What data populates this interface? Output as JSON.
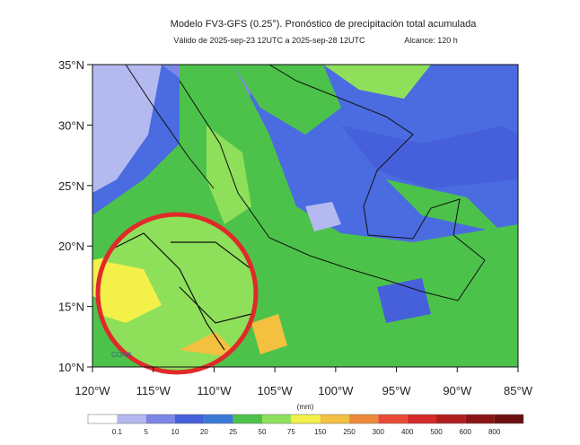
{
  "header": {
    "title": "Modelo FV3-GFS (0.25°). Pronóstico de precipitación total acumulada",
    "subtitle": "Válido de 2025-sep-23 12UTC a 2025-sep-28 12UTC",
    "range": "Alcance: 120 h"
  },
  "map": {
    "lat_ticks": [
      {
        "value": 35,
        "label": "35°N"
      },
      {
        "value": 30,
        "label": "30°N"
      },
      {
        "value": 25,
        "label": "25°N"
      },
      {
        "value": 20,
        "label": "20°N"
      },
      {
        "value": 15,
        "label": "15°N"
      },
      {
        "value": 10,
        "label": "10°N"
      }
    ],
    "lon_ticks": [
      {
        "value": -120,
        "label": "120°W"
      },
      {
        "value": -115,
        "label": "115°W"
      },
      {
        "value": -110,
        "label": "110°W"
      },
      {
        "value": -105,
        "label": "105°W"
      },
      {
        "value": -100,
        "label": "100°W"
      },
      {
        "value": -95,
        "label": "95°W"
      },
      {
        "value": -90,
        "label": "90°W"
      },
      {
        "value": -85,
        "label": "85°W"
      }
    ],
    "logo": "CONA"
  },
  "colorbar": {
    "units": "(mm)",
    "labels": [
      0.1,
      5,
      10,
      20,
      25,
      50,
      75,
      150,
      250,
      300,
      400,
      500,
      600,
      800
    ],
    "colors": [
      "#ffffff",
      "#b4b9ef",
      "#7c86e6",
      "#4660dc",
      "#3a78d6",
      "#4cc24a",
      "#8ee05a",
      "#f4f04a",
      "#f4c040",
      "#ee8a3a",
      "#e84a36",
      "#d42a2a",
      "#b01e1e",
      "#8a1414",
      "#6a0e0e"
    ]
  }
}
